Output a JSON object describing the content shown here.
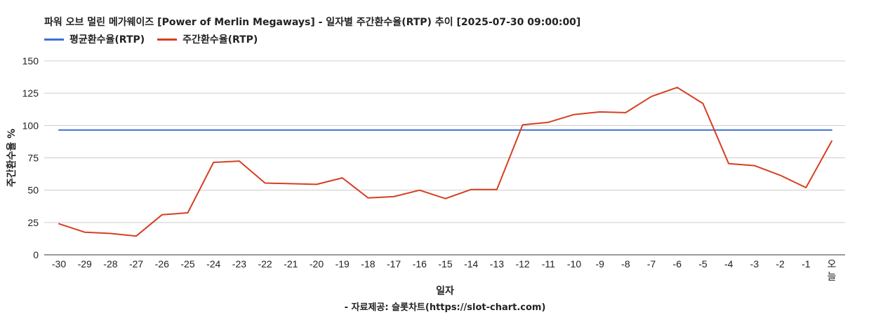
{
  "chart_data": {
    "type": "line",
    "title": "파워 오브 멀린 메가웨이즈 [Power of Merlin Megaways] - 일자별 주간환수율(RTP) 추이 [2025-07-30 09:00:00]",
    "xlabel": "일자",
    "ylabel": "주간환수율 %",
    "ylim": [
      0,
      150
    ],
    "yticks": [
      0,
      25,
      50,
      75,
      100,
      125,
      150
    ],
    "grid": true,
    "legend_position": "top-left",
    "categories": [
      "-30",
      "-29",
      "-28",
      "-27",
      "-26",
      "-25",
      "-24",
      "-23",
      "-22",
      "-21",
      "-20",
      "-19",
      "-18",
      "-17",
      "-16",
      "-15",
      "-14",
      "-13",
      "-12",
      "-11",
      "-10",
      "-9",
      "-8",
      "-7",
      "-6",
      "-5",
      "-4",
      "-3",
      "-2",
      "-1",
      "오늘"
    ],
    "series": [
      {
        "name": "평균환수율(RTP)",
        "color": "#3d6fd9",
        "values": [
          96.5,
          96.5,
          96.5,
          96.5,
          96.5,
          96.5,
          96.5,
          96.5,
          96.5,
          96.5,
          96.5,
          96.5,
          96.5,
          96.5,
          96.5,
          96.5,
          96.5,
          96.5,
          96.5,
          96.5,
          96.5,
          96.5,
          96.5,
          96.5,
          96.5,
          96.5,
          96.5,
          96.5,
          96.5,
          96.5,
          96.5
        ]
      },
      {
        "name": "주간환수율(RTP)",
        "color": "#d63f21",
        "values": [
          24,
          17.5,
          16.5,
          14.5,
          31,
          32.5,
          71.5,
          72.5,
          55.5,
          55,
          54.5,
          59.5,
          44,
          45,
          50,
          43.5,
          50.5,
          50.5,
          100.5,
          102.5,
          108.5,
          110.5,
          110,
          122.5,
          129.5,
          117,
          70.5,
          69,
          61.5,
          52,
          88
        ]
      }
    ],
    "source": "- 자료제공: 슬롯차트(https://slot-chart.com)"
  }
}
